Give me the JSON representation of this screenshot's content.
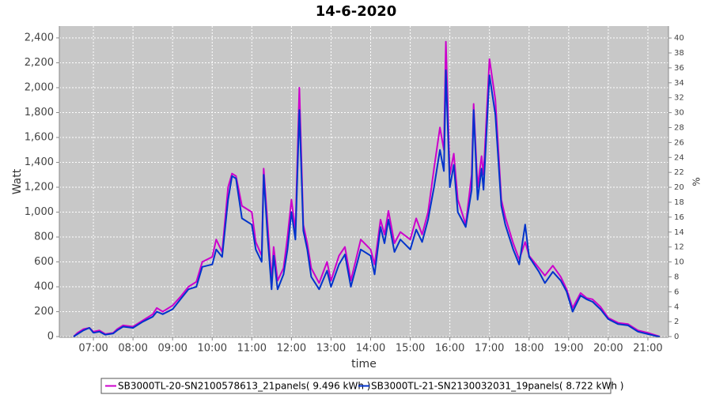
{
  "chart_data": {
    "type": "line",
    "title": "14-6-2020",
    "xlabel": "time",
    "ylabel": "Watt",
    "y2label": "%",
    "x": [
      6.5,
      6.6,
      6.75,
      6.9,
      7.0,
      7.15,
      7.3,
      7.5,
      7.6,
      7.75,
      8.0,
      8.25,
      8.5,
      8.6,
      8.75,
      9.0,
      9.2,
      9.4,
      9.6,
      9.75,
      10.0,
      10.1,
      10.25,
      10.4,
      10.5,
      10.6,
      10.75,
      11.0,
      11.1,
      11.25,
      11.3,
      11.4,
      11.5,
      11.55,
      11.65,
      11.8,
      11.9,
      12.0,
      12.1,
      12.2,
      12.3,
      12.4,
      12.5,
      12.7,
      12.9,
      13.0,
      13.2,
      13.35,
      13.5,
      13.75,
      14.0,
      14.1,
      14.25,
      14.35,
      14.45,
      14.6,
      14.75,
      15.0,
      15.15,
      15.3,
      15.45,
      15.6,
      15.75,
      15.85,
      15.9,
      16.0,
      16.1,
      16.2,
      16.4,
      16.55,
      16.6,
      16.7,
      16.8,
      16.85,
      17.0,
      17.15,
      17.3,
      17.4,
      17.6,
      17.75,
      17.9,
      18.0,
      18.25,
      18.4,
      18.6,
      18.8,
      18.95,
      19.1,
      19.3,
      19.45,
      19.6,
      19.8,
      20.0,
      20.25,
      20.5,
      20.75,
      21.0,
      21.2,
      21.3
    ],
    "series": [
      {
        "name": "SB3000TL-20-SN2100578613_21panels( 9.496 kWh )",
        "color": "#cc00cc",
        "values": [
          0,
          30,
          60,
          70,
          40,
          50,
          20,
          30,
          60,
          90,
          80,
          130,
          180,
          230,
          200,
          250,
          320,
          400,
          440,
          600,
          640,
          780,
          680,
          1200,
          1310,
          1290,
          1050,
          1000,
          760,
          650,
          1350,
          900,
          450,
          720,
          450,
          550,
          800,
          1100,
          850,
          2000,
          900,
          750,
          550,
          430,
          600,
          450,
          650,
          720,
          450,
          780,
          700,
          580,
          940,
          820,
          1010,
          750,
          840,
          780,
          950,
          820,
          1000,
          1350,
          1680,
          1500,
          2370,
          1300,
          1470,
          1100,
          900,
          1300,
          1870,
          1200,
          1450,
          1300,
          2230,
          1900,
          1100,
          960,
          750,
          620,
          760,
          650,
          550,
          490,
          570,
          480,
          380,
          230,
          350,
          310,
          300,
          240,
          150,
          110,
          100,
          50,
          30,
          10,
          0
        ]
      },
      {
        "name": "SB3000TL-21-SN2130032031_19panels( 8.722 kWh )",
        "color": "#0033cc",
        "values": [
          0,
          20,
          50,
          70,
          30,
          40,
          15,
          25,
          50,
          80,
          70,
          120,
          160,
          200,
          180,
          220,
          300,
          380,
          400,
          560,
          580,
          700,
          640,
          1100,
          1290,
          1270,
          950,
          900,
          700,
          600,
          1300,
          800,
          380,
          650,
          380,
          500,
          700,
          1000,
          780,
          1820,
          850,
          700,
          480,
          380,
          530,
          400,
          580,
          660,
          400,
          700,
          650,
          500,
          880,
          750,
          940,
          680,
          780,
          700,
          860,
          760,
          940,
          1200,
          1500,
          1330,
          2140,
          1200,
          1380,
          1000,
          880,
          1180,
          1820,
          1100,
          1350,
          1180,
          2100,
          1780,
          1050,
          900,
          700,
          580,
          900,
          640,
          520,
          430,
          520,
          450,
          360,
          200,
          330,
          300,
          280,
          220,
          140,
          100,
          90,
          40,
          20,
          5,
          0
        ]
      }
    ],
    "xlim": [
      6.14,
      21.52
    ],
    "xticks": [
      {
        "value": 7,
        "label": "07:00"
      },
      {
        "value": 8,
        "label": "08:00"
      },
      {
        "value": 9,
        "label": "09:00"
      },
      {
        "value": 10,
        "label": "10:00"
      },
      {
        "value": 11,
        "label": "11:00"
      },
      {
        "value": 12,
        "label": "12:00"
      },
      {
        "value": 13,
        "label": "13:00"
      },
      {
        "value": 14,
        "label": "14:00"
      },
      {
        "value": 15,
        "label": "15:00"
      },
      {
        "value": 16,
        "label": "16:00"
      },
      {
        "value": 17,
        "label": "17:00"
      },
      {
        "value": 18,
        "label": "18:00"
      },
      {
        "value": 19,
        "label": "19:00"
      },
      {
        "value": 20,
        "label": "20:00"
      },
      {
        "value": 21,
        "label": "21:00"
      }
    ],
    "ylim": [
      -6,
      2495
    ],
    "yticks": [
      0,
      200,
      400,
      600,
      800,
      {
        "value": 1000,
        "label": "1,000"
      },
      {
        "value": 1200,
        "label": "1,200"
      },
      {
        "value": 1400,
        "label": "1,400"
      },
      {
        "value": 1600,
        "label": "1,600"
      },
      {
        "value": 1800,
        "label": "1,800"
      },
      {
        "value": 2000,
        "label": "2,000"
      },
      {
        "value": 2200,
        "label": "2,200"
      },
      {
        "value": 2400,
        "label": "2,400"
      }
    ],
    "y2lim": [
      -0.1,
      41.6
    ],
    "y2ticks": [
      0,
      2,
      4,
      6,
      8,
      10,
      12,
      14,
      16,
      18,
      20,
      22,
      24,
      26,
      28,
      30,
      32,
      34,
      36,
      38,
      40
    ],
    "grid": true,
    "legend": "bottom"
  }
}
